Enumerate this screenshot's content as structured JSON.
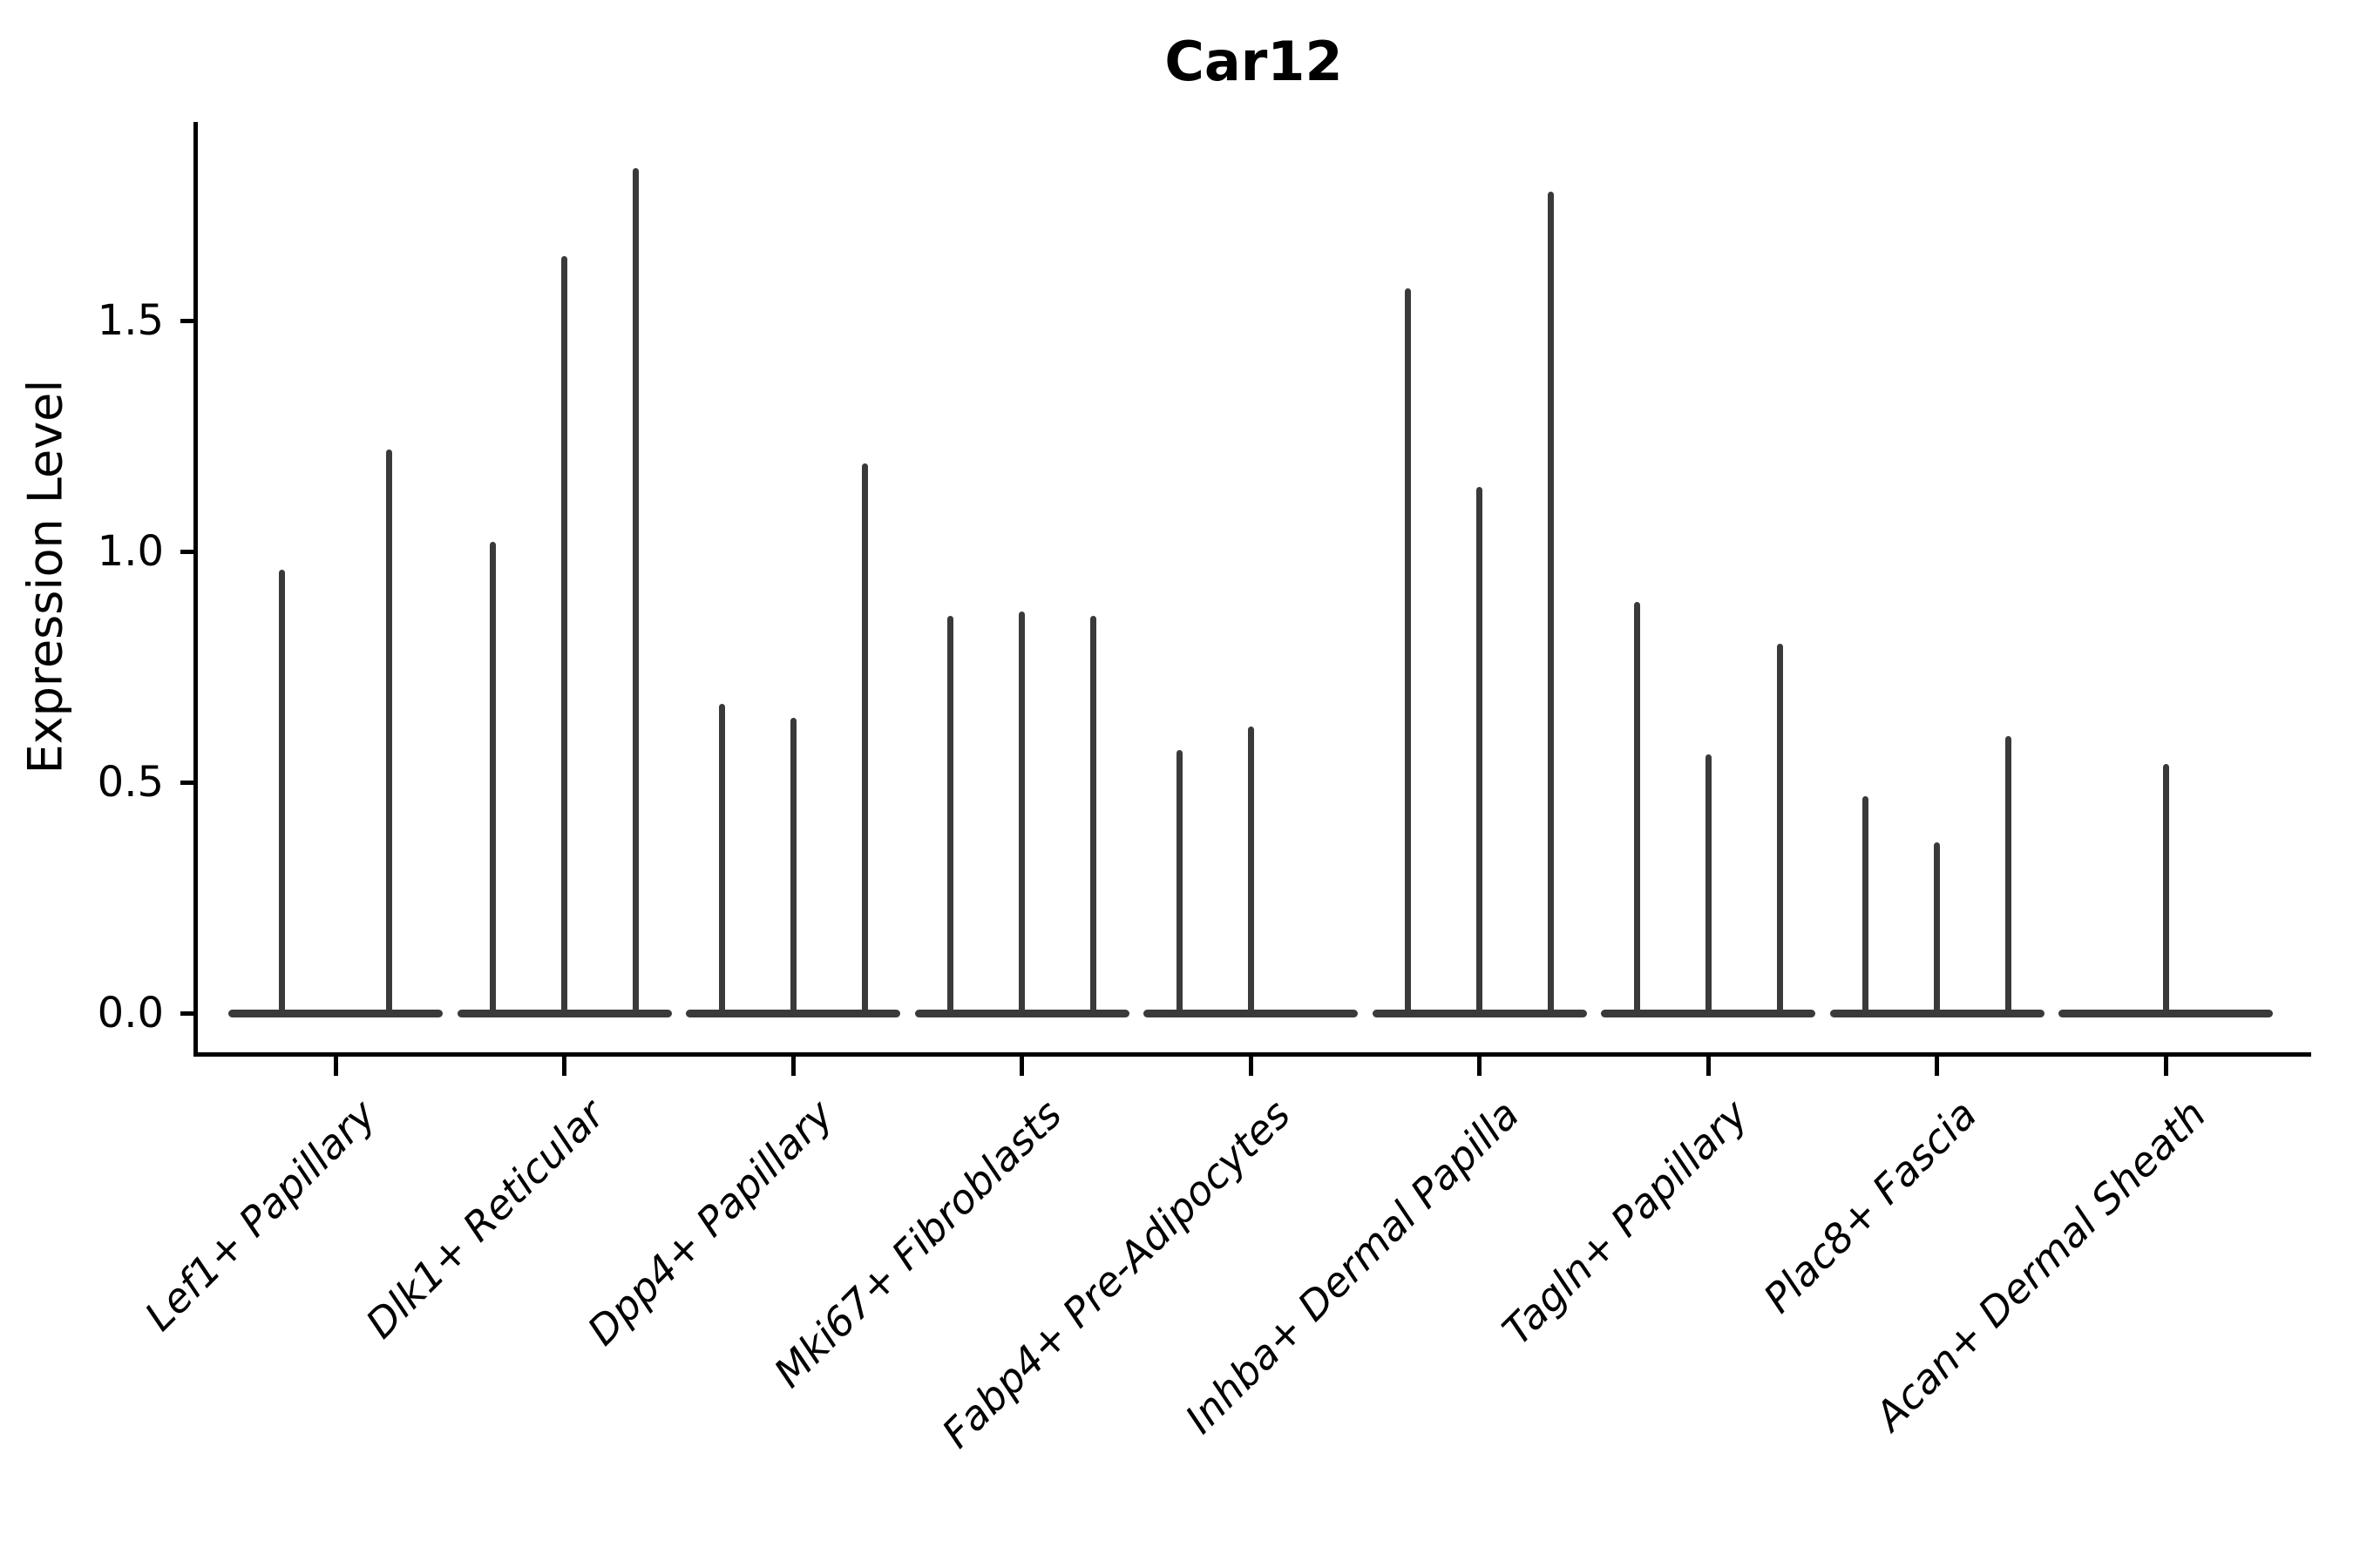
{
  "figure": {
    "title": "Car12",
    "ylabel": "Expression Level"
  },
  "chart_data": {
    "type": "violin",
    "title": "Car12",
    "xlabel": "",
    "ylabel": "Expression Level",
    "ylim": [
      -0.09,
      1.93
    ],
    "ytick_labels": [
      "0.0",
      "0.5",
      "1.0",
      "1.5"
    ],
    "ytick_values": [
      0.0,
      0.5,
      1.0,
      1.5
    ],
    "grid": false,
    "legend": "none",
    "categories": [
      "Lef1+ Papillary",
      "Dlk1+ Reticular",
      "Dpp4+ Papillary",
      "Mki67+ Fibroblasts",
      "Fabp4+ Pre-Adipocytes",
      "Inhba+ Dermal Papilla",
      "Tagln+ Papillary",
      "Plac8+ Fascia",
      "Acan+ Dermal Sheath"
    ],
    "series": [
      {
        "category": "Lef1+ Papillary",
        "violin_maxima": [
          0.96,
          1.22
        ]
      },
      {
        "category": "Dlk1+ Reticular",
        "violin_maxima": [
          1.02,
          1.64,
          1.83
        ]
      },
      {
        "category": "Dpp4+ Papillary",
        "violin_maxima": [
          0.67,
          0.64,
          1.19
        ]
      },
      {
        "category": "Mki67+ Fibroblasts",
        "violin_maxima": [
          0.86,
          0.87,
          0.86
        ]
      },
      {
        "category": "Fabp4+ Pre-Adipocytes",
        "violin_maxima": [
          0.57,
          0.62,
          0.0
        ]
      },
      {
        "category": "Inhba+ Dermal Papilla",
        "violin_maxima": [
          1.57,
          1.14,
          1.78
        ]
      },
      {
        "category": "Tagln+ Papillary",
        "violin_maxima": [
          0.89,
          0.56,
          0.8
        ]
      },
      {
        "category": "Plac8+ Fascia",
        "violin_maxima": [
          0.47,
          0.37,
          0.6
        ]
      },
      {
        "category": "Acan+ Dermal Sheath",
        "violin_maxima": [
          0.0,
          0.54,
          0.0
        ]
      }
    ],
    "violin_baseline_value": 0.0,
    "colors": {
      "violin": "#3a3a3a",
      "axis": "#000000",
      "text": "#000000",
      "background": "#ffffff"
    }
  }
}
